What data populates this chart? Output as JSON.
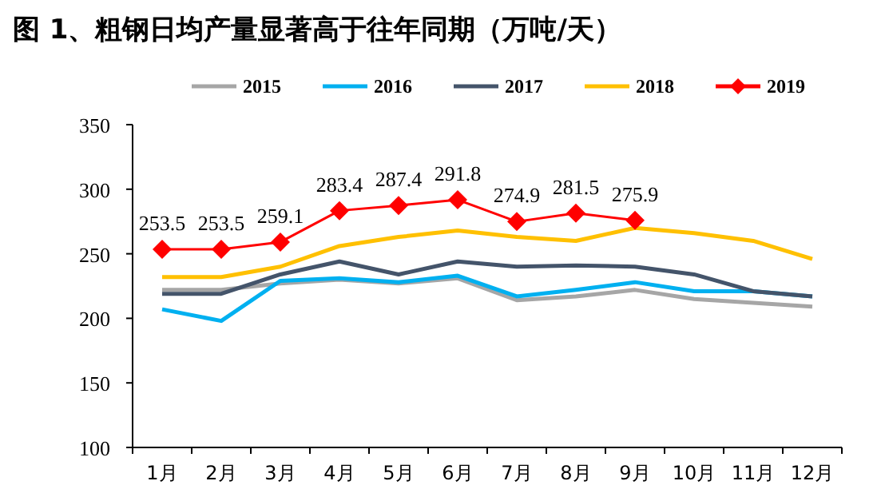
{
  "chart_data": {
    "type": "line",
    "title": "图 1、粗钢日均产量显著高于往年同期（万吨/天）",
    "categories": [
      "1月",
      "2月",
      "3月",
      "4月",
      "5月",
      "6月",
      "7月",
      "8月",
      "9月",
      "10月",
      "11月",
      "12月"
    ],
    "series": [
      {
        "name": "2015",
        "color": "#a6a6a6",
        "values": [
          222,
          222,
          227,
          230,
          227,
          231,
          214,
          217,
          222,
          215,
          212,
          209
        ]
      },
      {
        "name": "2016",
        "color": "#00b0f0",
        "values": [
          207,
          198,
          229,
          231,
          228,
          233,
          217,
          222,
          228,
          221,
          221,
          217
        ]
      },
      {
        "name": "2017",
        "color": "#44546a",
        "values": [
          219,
          219,
          234,
          244,
          234,
          244,
          240,
          241,
          240,
          234,
          221,
          217
        ]
      },
      {
        "name": "2018",
        "color": "#ffc000",
        "values": [
          232,
          232,
          240,
          256,
          263,
          268,
          263,
          260,
          270,
          266,
          260,
          246
        ]
      },
      {
        "name": "2019",
        "color": "#ff0000",
        "marker": "diamond",
        "values": [
          253.5,
          253.5,
          259.1,
          283.4,
          287.4,
          291.8,
          274.9,
          281.5,
          275.9,
          null,
          null,
          null
        ],
        "value_labels": [
          "253.5",
          "253.5",
          "259.1",
          "283.4",
          "287.4",
          "291.8",
          "274.9",
          "281.5",
          "275.9",
          null,
          null,
          null
        ]
      }
    ],
    "ylim": [
      100,
      350
    ],
    "yticks": [
      100,
      150,
      200,
      250,
      300,
      350
    ],
    "grid": false,
    "legend": "top"
  }
}
